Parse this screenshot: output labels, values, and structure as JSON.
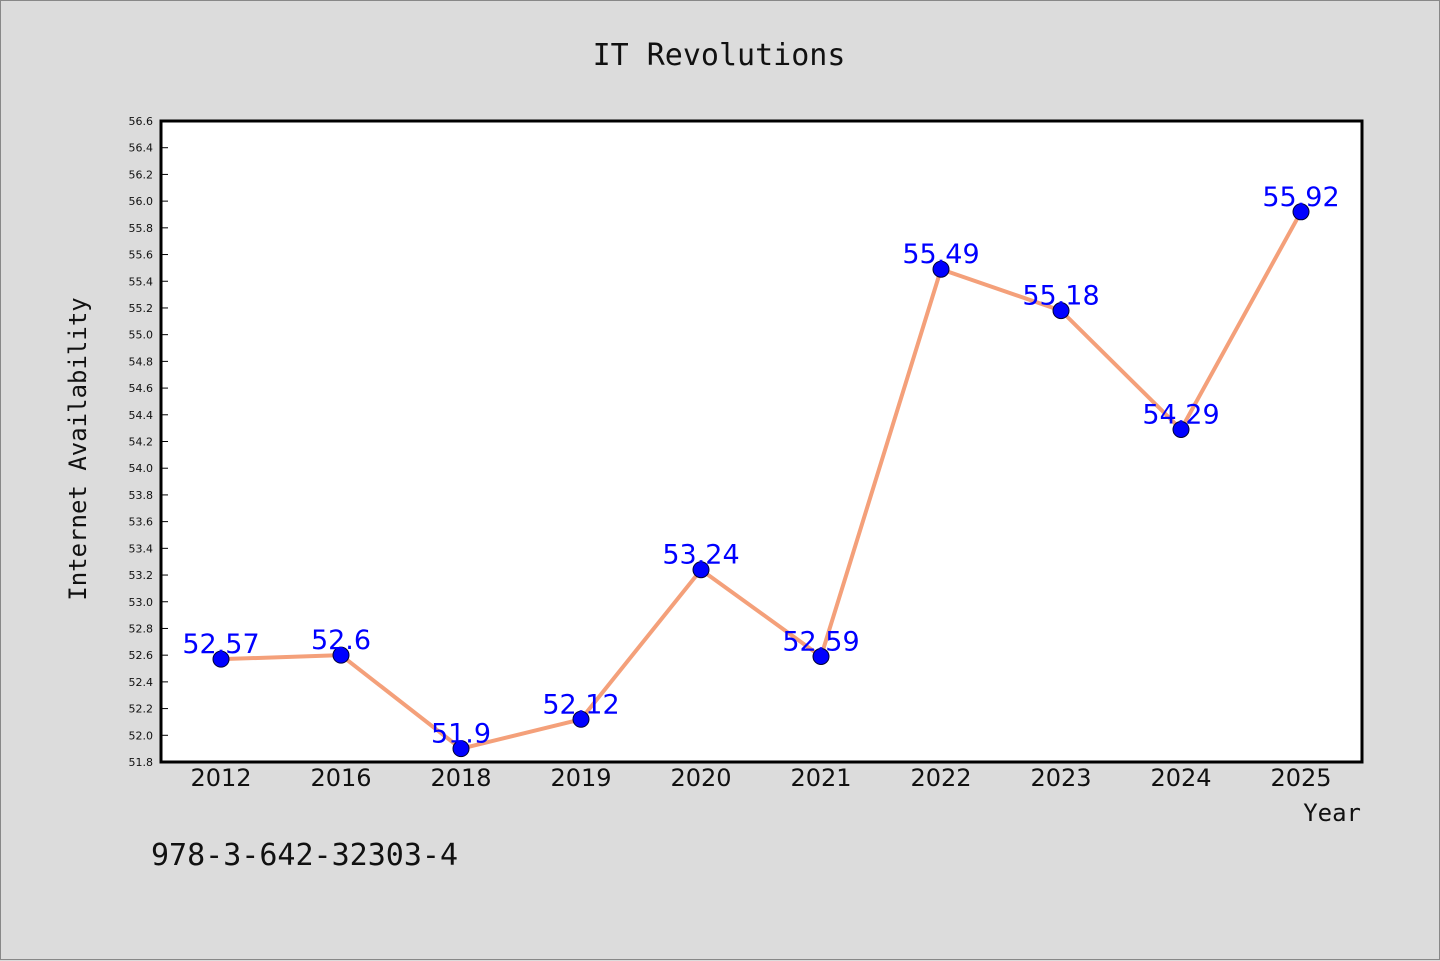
{
  "chart_data": {
    "type": "line",
    "title": "IT Revolutions",
    "xlabel": "Year",
    "ylabel": "Internet Availability",
    "categories": [
      "2012",
      "2016",
      "2018",
      "2019",
      "2020",
      "2021",
      "2022",
      "2023",
      "2024",
      "2025"
    ],
    "series": [
      {
        "values": [
          52.57,
          52.6,
          51.9,
          52.12,
          53.24,
          52.59,
          55.49,
          55.18,
          54.29,
          55.92
        ],
        "data_labels": [
          "52.57",
          "52.6",
          "51.9",
          "52.12",
          "53.24",
          "52.59",
          "55.49",
          "55.18",
          "54.29",
          "55.92"
        ],
        "line_color": "#f4a07a",
        "marker_color": "#0000ff"
      }
    ],
    "ylim": [
      51.8,
      56.6
    ],
    "yticks": [
      "51.8",
      "52.0",
      "52.2",
      "52.4",
      "52.6",
      "52.8",
      "53.0",
      "53.2",
      "53.4",
      "53.6",
      "53.8",
      "54.0",
      "54.2",
      "54.4",
      "54.6",
      "54.8",
      "55.0",
      "55.2",
      "55.4",
      "55.6",
      "55.8",
      "56.0",
      "56.2",
      "56.4",
      "56.6"
    ],
    "grid": false,
    "legend": "none"
  },
  "footnote": "978-3-642-32303-4",
  "colors": {
    "background": "#dcdcdc",
    "plot_background": "#ffffff",
    "axis": "#000000"
  }
}
